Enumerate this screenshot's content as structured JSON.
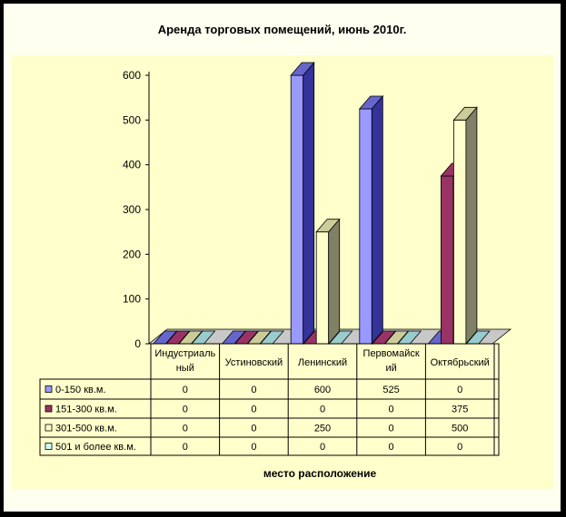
{
  "chart_data": {
    "type": "bar",
    "title": "Аренда торговых помещений, июнь 2010г.",
    "xlabel": "место расположение",
    "ylabel": "",
    "ylim": [
      0,
      600
    ],
    "yticks": [
      0,
      100,
      200,
      300,
      400,
      500,
      600
    ],
    "categories": [
      "Индустриальный",
      "Устиновский",
      "Ленинский",
      "Первомайский",
      "Октябрьский"
    ],
    "category_lines": [
      [
        "Индустриаль",
        "ный"
      ],
      [
        "Устиновский"
      ],
      [
        "Ленинский"
      ],
      [
        "Первомайск",
        "ий"
      ],
      [
        "Октябрьский"
      ]
    ],
    "series": [
      {
        "name": "0-150 кв.м.",
        "values": [
          0,
          0,
          600,
          525,
          0
        ],
        "labels": [
          "0",
          "0",
          "600",
          "525",
          "0"
        ],
        "color": "#9999ff"
      },
      {
        "name": "151-300 кв.м.",
        "values": [
          0,
          0,
          0,
          0,
          375
        ],
        "labels": [
          "0",
          "0",
          "0",
          "0",
          "375"
        ],
        "color": "#993366"
      },
      {
        "name": "301-500 кв.м.",
        "values": [
          0,
          0,
          250,
          0,
          500
        ],
        "labels": [
          "0",
          "0",
          "250",
          "0",
          "500"
        ],
        "color": "#ffffcc"
      },
      {
        "name": "501 и более кв.м.",
        "values": [
          0,
          0,
          0,
          0,
          0
        ],
        "labels": [
          "0",
          "0",
          "0",
          "0",
          "0"
        ],
        "color": "#ccffff"
      }
    ],
    "side_colors": [
      "#333399",
      "#660033",
      "#808066",
      "#669999"
    ],
    "top_colors": [
      "#6666cc",
      "#993366",
      "#cccc99",
      "#99cccc"
    ],
    "legend_placement": "bottom-left (data table)",
    "grid": false,
    "plot_background": "#ffffcc"
  }
}
